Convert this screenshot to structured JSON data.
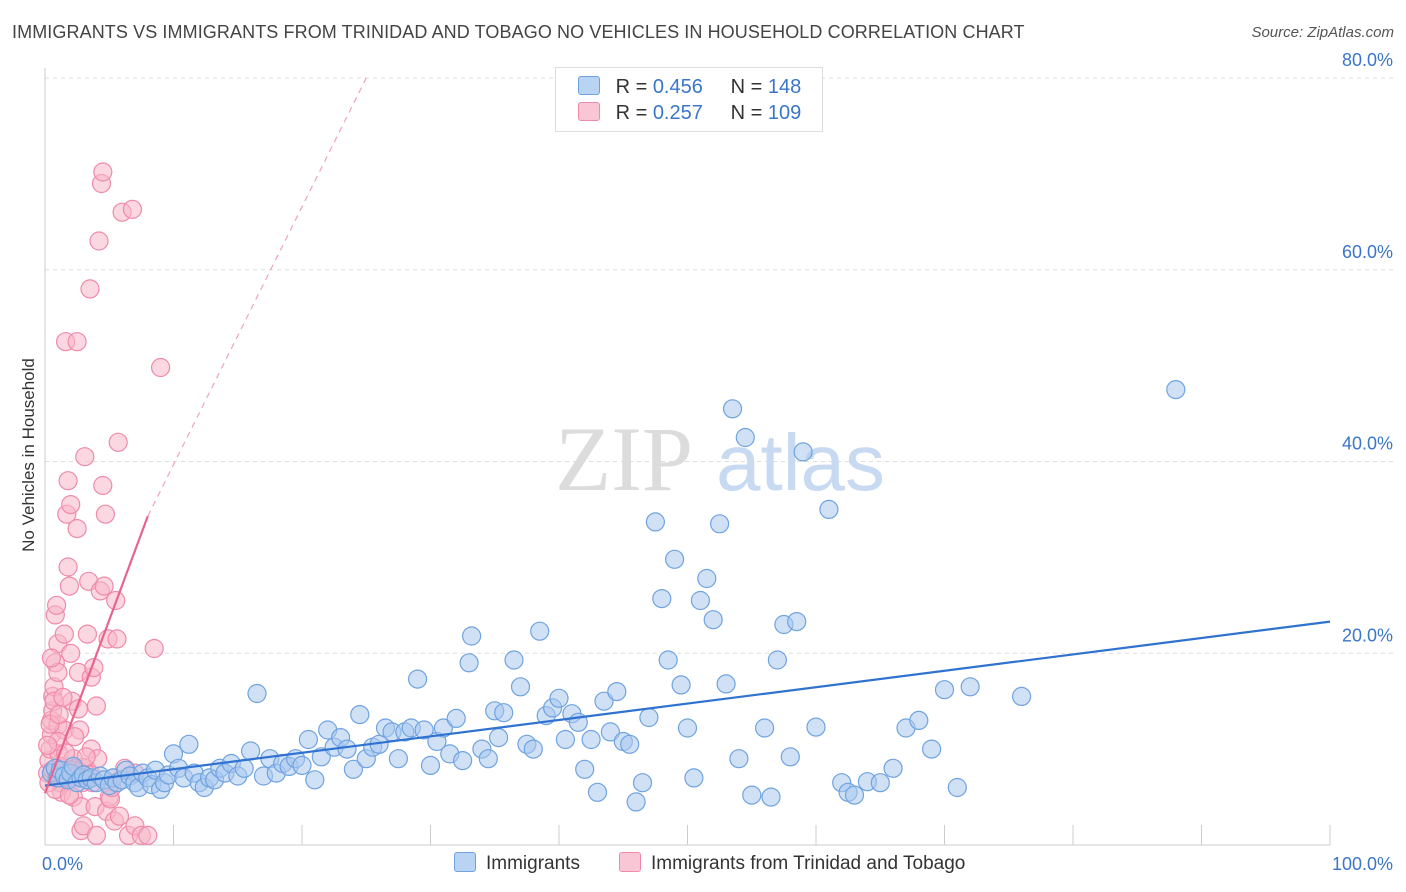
{
  "title": "IMMIGRANTS VS IMMIGRANTS FROM TRINIDAD AND TOBAGO NO VEHICLES IN HOUSEHOLD CORRELATION CHART",
  "source": "Source: ZipAtlas.com",
  "watermark": {
    "zip": "ZIP",
    "atlas": "atlas"
  },
  "legend": {
    "r_label": "R =",
    "n_label": "N =",
    "series": [
      {
        "name": "Immigrants",
        "r": "0.456",
        "n": "148",
        "color": "#6fa3e0"
      },
      {
        "name": "Immigrants from Trinidad and Tobago",
        "r": "0.257",
        "n": "109",
        "color": "#f08aaa"
      }
    ]
  },
  "colors": {
    "blue_fill": "#a9c8ef",
    "blue_stroke": "#6fa3e0",
    "blue_line": "#2f72d0",
    "pink_fill": "#f7b6c9",
    "pink_stroke": "#f08aaa",
    "pink_line": "#e8648f",
    "grid": "#dddddd",
    "tick_label": "#3a76c8"
  },
  "chart_data": {
    "type": "scatter",
    "title": "IMMIGRANTS VS IMMIGRANTS FROM TRINIDAD AND TOBAGO NO VEHICLES IN HOUSEHOLD CORRELATION CHART",
    "xlabel": "",
    "ylabel": "No Vehicles in Household",
    "xlim": [
      0,
      100
    ],
    "ylim": [
      0,
      82
    ],
    "x_tick_labels": [
      "0.0%",
      "100.0%"
    ],
    "y_ticks": [
      20,
      40,
      60,
      80
    ],
    "y_tick_labels": [
      "20.0%",
      "40.0%",
      "60.0%",
      "80.0%"
    ],
    "series": [
      {
        "name": "Immigrants",
        "trend": {
          "x": [
            0,
            100
          ],
          "y": [
            6.2,
            23.3
          ]
        },
        "points": [
          [
            0.5,
            7.5
          ],
          [
            0.8,
            8
          ],
          [
            1,
            7
          ],
          [
            1.2,
            7.8
          ],
          [
            1.5,
            7.2
          ],
          [
            1.8,
            6.8
          ],
          [
            2,
            7.5
          ],
          [
            2.2,
            8.2
          ],
          [
            2.5,
            6.5
          ],
          [
            2.8,
            7
          ],
          [
            3,
            7.3
          ],
          [
            3.3,
            6.8
          ],
          [
            3.6,
            7
          ],
          [
            4,
            6.5
          ],
          [
            4.3,
            7.2
          ],
          [
            4.6,
            6.8
          ],
          [
            5,
            6.2
          ],
          [
            5.3,
            7
          ],
          [
            5.6,
            6.5
          ],
          [
            6,
            6.8
          ],
          [
            6.3,
            7.8
          ],
          [
            6.6,
            7.2
          ],
          [
            7,
            6.5
          ],
          [
            7.3,
            6
          ],
          [
            7.6,
            7.5
          ],
          [
            8,
            7
          ],
          [
            8.3,
            6.3
          ],
          [
            8.6,
            7.8
          ],
          [
            9,
            5.8
          ],
          [
            9.3,
            6.5
          ],
          [
            9.6,
            7.3
          ],
          [
            10,
            9.5
          ],
          [
            10.4,
            8
          ],
          [
            10.8,
            7
          ],
          [
            11.2,
            10.5
          ],
          [
            11.6,
            7.5
          ],
          [
            12,
            6.5
          ],
          [
            12.4,
            6
          ],
          [
            12.8,
            7
          ],
          [
            13.2,
            6.8
          ],
          [
            13.6,
            8
          ],
          [
            14,
            7.5
          ],
          [
            14.5,
            8.5
          ],
          [
            15,
            7.2
          ],
          [
            15.5,
            8
          ],
          [
            16,
            9.8
          ],
          [
            16.5,
            15.8
          ],
          [
            17,
            7.2
          ],
          [
            17.5,
            9
          ],
          [
            18,
            7.5
          ],
          [
            18.5,
            8.5
          ],
          [
            19,
            8.2
          ],
          [
            19.5,
            9
          ],
          [
            20,
            8.3
          ],
          [
            20.5,
            11
          ],
          [
            21,
            6.8
          ],
          [
            21.5,
            9.2
          ],
          [
            22,
            12
          ],
          [
            22.5,
            10.2
          ],
          [
            23,
            11.2
          ],
          [
            23.5,
            10
          ],
          [
            24,
            7.9
          ],
          [
            24.5,
            13.6
          ],
          [
            25,
            9
          ],
          [
            25.5,
            10.2
          ],
          [
            26,
            10.5
          ],
          [
            26.5,
            12.2
          ],
          [
            27,
            11.8
          ],
          [
            27.5,
            9
          ],
          [
            28,
            11.8
          ],
          [
            28.5,
            12.2
          ],
          [
            29,
            17.3
          ],
          [
            29.5,
            12
          ],
          [
            30,
            8.3
          ],
          [
            30.5,
            10.8
          ],
          [
            31,
            12.2
          ],
          [
            31.5,
            9.5
          ],
          [
            32,
            13.2
          ],
          [
            32.5,
            8.8
          ],
          [
            33,
            19
          ],
          [
            33.2,
            21.8
          ],
          [
            34,
            10
          ],
          [
            34.5,
            9
          ],
          [
            35,
            14
          ],
          [
            35.3,
            11.2
          ],
          [
            35.7,
            13.8
          ],
          [
            36.5,
            19.3
          ],
          [
            37,
            16.5
          ],
          [
            37.5,
            10.5
          ],
          [
            38,
            10
          ],
          [
            38.5,
            22.3
          ],
          [
            39,
            13.5
          ],
          [
            39.5,
            14.3
          ],
          [
            40,
            15.3
          ],
          [
            40.5,
            11
          ],
          [
            41,
            13.7
          ],
          [
            41.5,
            12.8
          ],
          [
            42,
            7.9
          ],
          [
            42.5,
            11
          ],
          [
            43,
            5.5
          ],
          [
            43.5,
            15
          ],
          [
            44,
            11.8
          ],
          [
            44.5,
            16
          ],
          [
            45,
            10.8
          ],
          [
            45.5,
            10.5
          ],
          [
            46,
            4.5
          ],
          [
            46.5,
            6.5
          ],
          [
            47,
            13.3
          ],
          [
            47.5,
            33.7
          ],
          [
            48,
            25.7
          ],
          [
            48.5,
            19.3
          ],
          [
            49,
            29.8
          ],
          [
            49.5,
            16.7
          ],
          [
            50,
            12.2
          ],
          [
            50.5,
            7
          ],
          [
            51,
            25.5
          ],
          [
            51.5,
            27.8
          ],
          [
            52,
            23.5
          ],
          [
            52.5,
            33.5
          ],
          [
            53,
            16.8
          ],
          [
            53.5,
            45.5
          ],
          [
            54,
            9
          ],
          [
            54.5,
            42.5
          ],
          [
            55,
            5.2
          ],
          [
            56,
            12.2
          ],
          [
            56.5,
            5
          ],
          [
            57,
            19.3
          ],
          [
            57.5,
            23
          ],
          [
            58,
            9.2
          ],
          [
            58.5,
            23.3
          ],
          [
            59,
            41
          ],
          [
            60,
            12.3
          ],
          [
            61,
            35
          ],
          [
            62,
            6.5
          ],
          [
            62.5,
            5.5
          ],
          [
            63,
            5.2
          ],
          [
            64,
            6.6
          ],
          [
            65,
            6.5
          ],
          [
            66,
            8
          ],
          [
            67,
            12.2
          ],
          [
            68,
            13
          ],
          [
            69,
            10
          ],
          [
            70,
            16.2
          ],
          [
            71,
            6
          ],
          [
            72,
            16.5
          ],
          [
            76,
            15.5
          ],
          [
            88,
            47.5
          ]
        ]
      },
      {
        "name": "Immigrants from Trinidad and Tobago",
        "trend": {
          "x": [
            0,
            8
          ],
          "y": [
            5.4,
            34.3
          ],
          "dashed_extension": {
            "x": [
              8,
              25
            ],
            "y": [
              34.3,
              80
            ]
          }
        },
        "points": [
          [
            0.2,
            7.5
          ],
          [
            0.3,
            8.8
          ],
          [
            0.4,
            10
          ],
          [
            0.5,
            11.5
          ],
          [
            0.5,
            13
          ],
          [
            0.6,
            14
          ],
          [
            0.6,
            15.5
          ],
          [
            0.7,
            16.5
          ],
          [
            0.8,
            19
          ],
          [
            0.8,
            24
          ],
          [
            0.9,
            25
          ],
          [
            1,
            21
          ],
          [
            1,
            18
          ],
          [
            1,
            12.5
          ],
          [
            1.1,
            9.5
          ],
          [
            1.2,
            6.5
          ],
          [
            1.3,
            5.5
          ],
          [
            1.3,
            7
          ],
          [
            1.4,
            8
          ],
          [
            1.5,
            12
          ],
          [
            1.5,
            22
          ],
          [
            1.6,
            52.5
          ],
          [
            1.7,
            34.5
          ],
          [
            1.8,
            38
          ],
          [
            1.8,
            29
          ],
          [
            1.9,
            27
          ],
          [
            2,
            35.5
          ],
          [
            2,
            20
          ],
          [
            2.1,
            15
          ],
          [
            2.2,
            9
          ],
          [
            2.2,
            5
          ],
          [
            2.3,
            7.5
          ],
          [
            2.4,
            8
          ],
          [
            2.5,
            52.5
          ],
          [
            2.5,
            33
          ],
          [
            2.6,
            18
          ],
          [
            2.7,
            12
          ],
          [
            2.8,
            4
          ],
          [
            2.8,
            1.5
          ],
          [
            2.9,
            6.5
          ],
          [
            3,
            2
          ],
          [
            3.1,
            40.5
          ],
          [
            3.2,
            8
          ],
          [
            3.3,
            22
          ],
          [
            3.4,
            27.5
          ],
          [
            3.5,
            58
          ],
          [
            3.6,
            17.5
          ],
          [
            3.6,
            10
          ],
          [
            3.7,
            6.5
          ],
          [
            3.8,
            18.5
          ],
          [
            3.9,
            4
          ],
          [
            4,
            1
          ],
          [
            4,
            14.5
          ],
          [
            4.1,
            9
          ],
          [
            4.2,
            63
          ],
          [
            4.3,
            26.5
          ],
          [
            4.4,
            69
          ],
          [
            4.5,
            70.2
          ],
          [
            4.5,
            37.5
          ],
          [
            4.6,
            27
          ],
          [
            4.7,
            34.5
          ],
          [
            4.8,
            3.5
          ],
          [
            4.9,
            21.5
          ],
          [
            5,
            5
          ],
          [
            5.1,
            4.8
          ],
          [
            5.2,
            6
          ],
          [
            5.3,
            7
          ],
          [
            5.4,
            2.5
          ],
          [
            5.5,
            25.5
          ],
          [
            5.6,
            21.5
          ],
          [
            5.7,
            42
          ],
          [
            5.8,
            3
          ],
          [
            6,
            66
          ],
          [
            6.2,
            8
          ],
          [
            6.5,
            1
          ],
          [
            6.8,
            66.3
          ],
          [
            7,
            2
          ],
          [
            7,
            7.5
          ],
          [
            7.5,
            1
          ],
          [
            8,
            1
          ],
          [
            8.5,
            20.5
          ],
          [
            9,
            49.8
          ],
          [
            0.3,
            6.5
          ],
          [
            0.6,
            7.8
          ],
          [
            0.9,
            7
          ],
          [
            1.2,
            8.2
          ],
          [
            1.5,
            7.4
          ],
          [
            1.8,
            6.9
          ],
          [
            2.1,
            7.8
          ],
          [
            2.4,
            7.1
          ],
          [
            2.7,
            7.6
          ],
          [
            3,
            8.1
          ],
          [
            3.3,
            6.8
          ],
          [
            3.6,
            7.3
          ],
          [
            0.4,
            12.6
          ],
          [
            0.7,
            15
          ],
          [
            1,
            10.8
          ],
          [
            1.6,
            9.6
          ],
          [
            2.3,
            11.3
          ],
          [
            0.5,
            19.5
          ],
          [
            1.4,
            15.4
          ],
          [
            2.6,
            14.2
          ],
          [
            0.2,
            10.4
          ],
          [
            1.1,
            13.6
          ],
          [
            3.2,
            9.2
          ],
          [
            0.8,
            5.8
          ],
          [
            1.9,
            5.2
          ]
        ]
      }
    ]
  }
}
